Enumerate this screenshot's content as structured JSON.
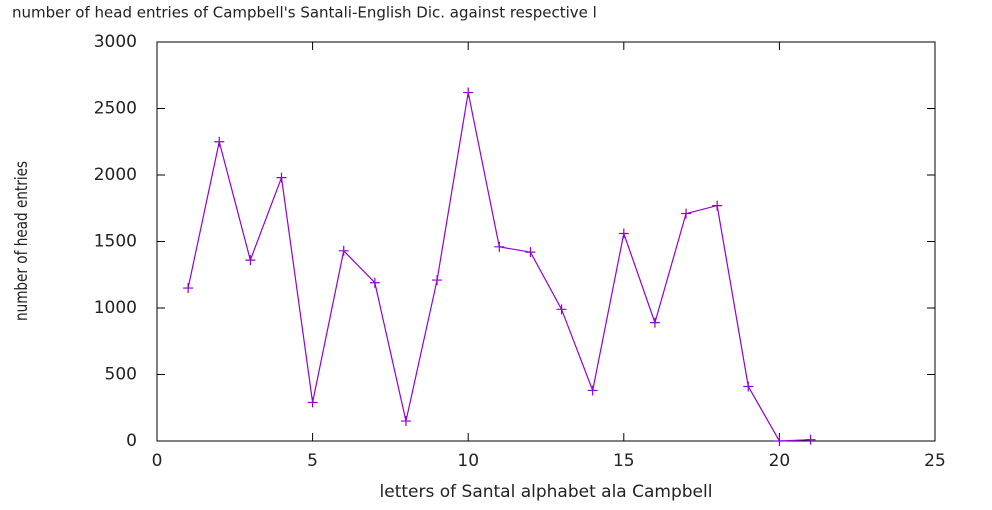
{
  "chart_data": {
    "type": "line",
    "title": "number of head entries of Campbell's Santali-English Dic. against respective l",
    "x_label": "letters of Santal alphabet ala Campbell",
    "y_label": "number of head entries",
    "x": [
      1,
      2,
      3,
      4,
      5,
      6,
      7,
      8,
      9,
      10,
      11,
      12,
      13,
      14,
      15,
      16,
      17,
      18,
      19,
      20,
      21
    ],
    "series": [
      {
        "color": "#9400d3",
        "values": [
          1150,
          2250,
          1360,
          1980,
          290,
          1430,
          1190,
          150,
          1210,
          2620,
          1460,
          1420,
          990,
          380,
          1560,
          890,
          1710,
          1770,
          410,
          0,
          10
        ]
      }
    ],
    "xlim": [
      0,
      25
    ],
    "xticks": [
      0,
      5,
      10,
      15,
      20,
      25
    ],
    "ylim": [
      0,
      3000
    ],
    "yticks": [
      0,
      500,
      1000,
      1500,
      2000,
      2500,
      3000
    ],
    "grid": false
  }
}
